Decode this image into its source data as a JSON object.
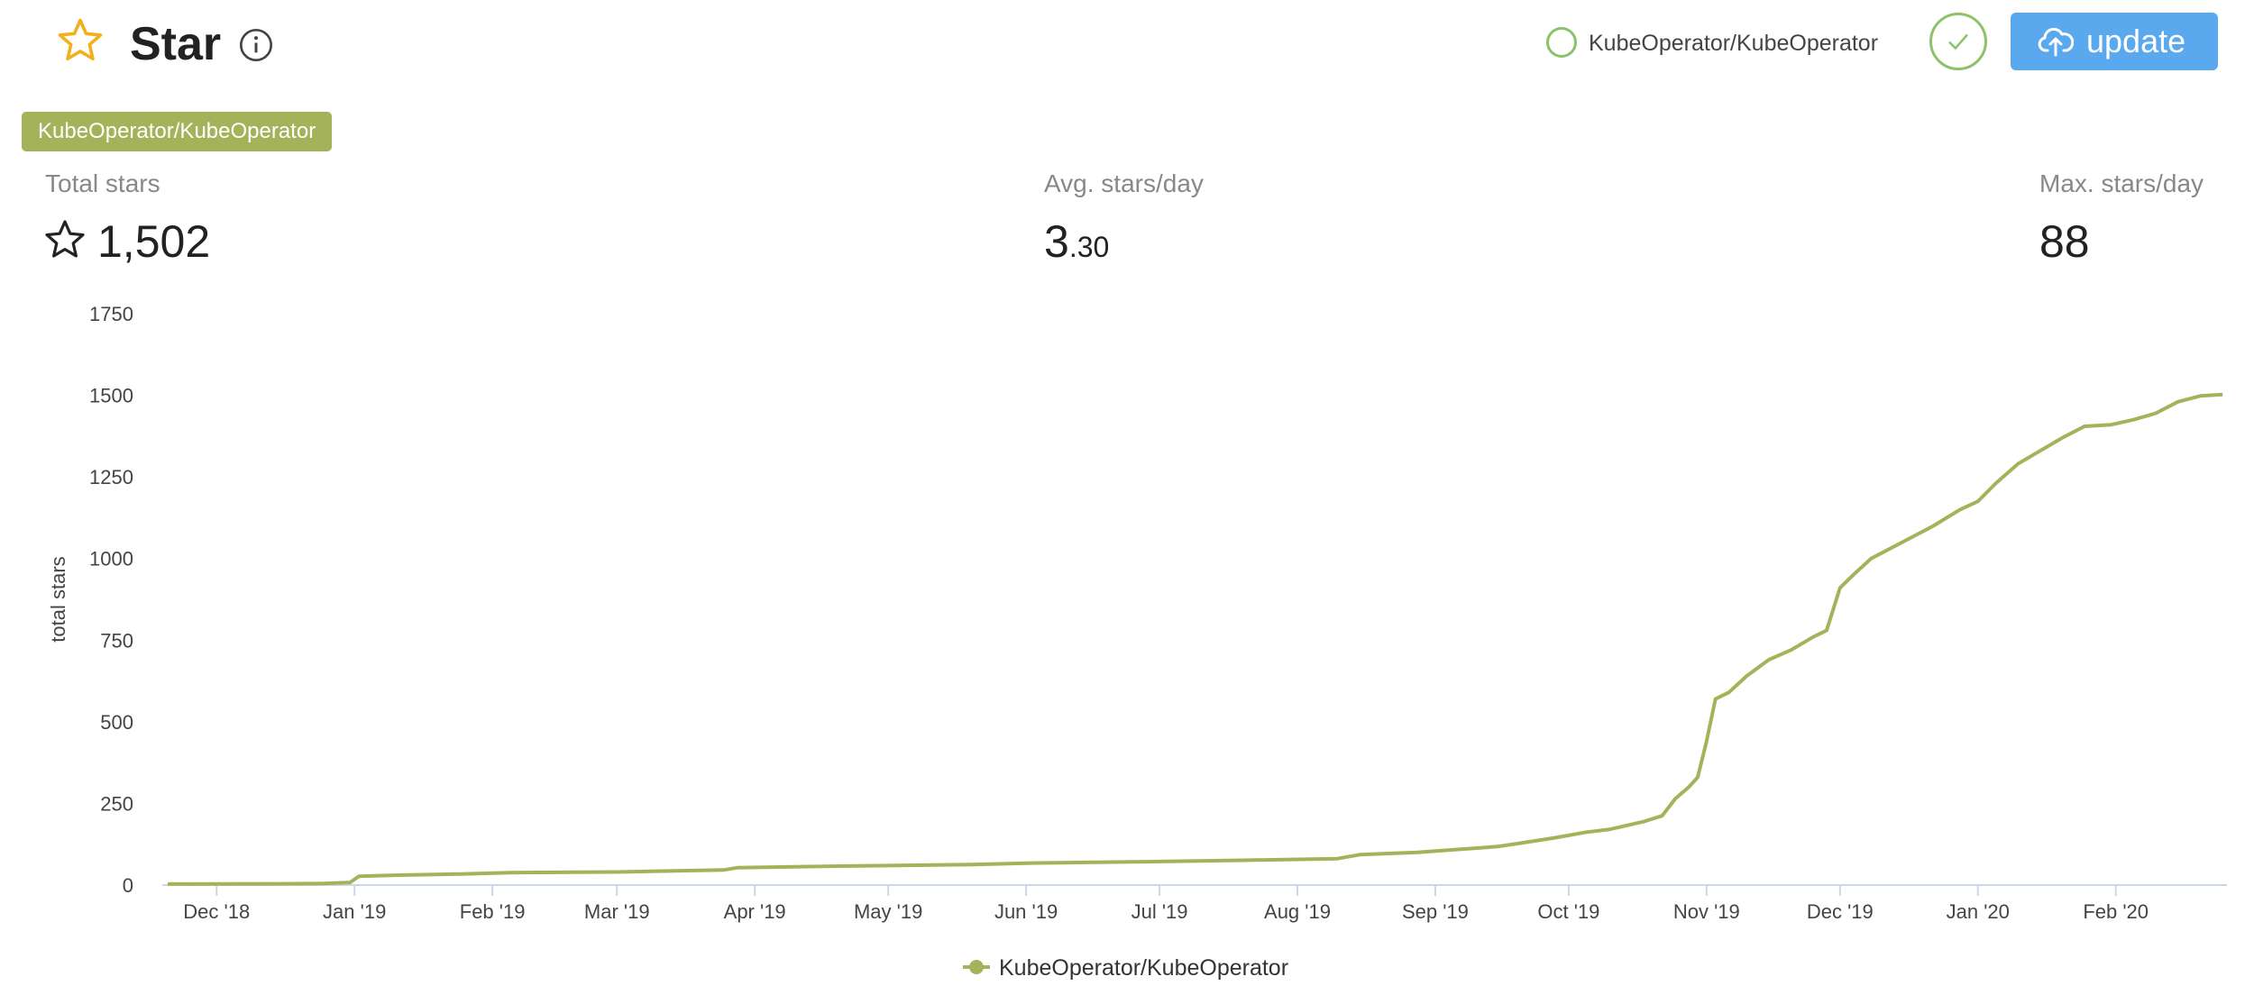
{
  "header": {
    "title": "Star",
    "repo_label": "KubeOperator/KubeOperator",
    "update_label": "update"
  },
  "tag": "KubeOperator/KubeOperator",
  "stats": {
    "total_label": "Total stars",
    "total_value": "1,502",
    "avg_label": "Avg. stars/day",
    "avg_value_int": "3",
    "avg_value_dec": ".30",
    "max_label": "Max. stars/day",
    "max_value": "88"
  },
  "colors": {
    "series": "#a4b35a",
    "accent_green": "#8bc26a",
    "button_blue": "#5aa9ef",
    "star_yellow": "#f2b01e"
  },
  "icons": {
    "title": "star-icon",
    "info": "info-icon",
    "check": "check-icon",
    "upload": "cloud-upload-icon",
    "total": "star-outline-icon"
  },
  "chart_data": {
    "type": "line",
    "ylabel": "total stars",
    "xlabel": "",
    "ylim": [
      0,
      1750
    ],
    "yticks": [
      0,
      250,
      500,
      750,
      1000,
      1250,
      1500,
      1750
    ],
    "xticks": [
      {
        "date": "2018-12-01",
        "label": "Dec '18"
      },
      {
        "date": "2019-01-01",
        "label": "Jan '19"
      },
      {
        "date": "2019-02-01",
        "label": "Feb '19"
      },
      {
        "date": "2019-03-01",
        "label": "Mar '19"
      },
      {
        "date": "2019-04-01",
        "label": "Apr '19"
      },
      {
        "date": "2019-05-01",
        "label": "May '19"
      },
      {
        "date": "2019-06-01",
        "label": "Jun '19"
      },
      {
        "date": "2019-07-01",
        "label": "Jul '19"
      },
      {
        "date": "2019-08-01",
        "label": "Aug '19"
      },
      {
        "date": "2019-09-01",
        "label": "Sep '19"
      },
      {
        "date": "2019-10-01",
        "label": "Oct '19"
      },
      {
        "date": "2019-11-01",
        "label": "Nov '19"
      },
      {
        "date": "2019-12-01",
        "label": "Dec '19"
      },
      {
        "date": "2020-01-01",
        "label": "Jan '20"
      },
      {
        "date": "2020-02-01",
        "label": "Feb '20"
      }
    ],
    "xlim": [
      "2018-11-20",
      "2020-02-26"
    ],
    "legend": "bottom-center",
    "grid": false,
    "series": [
      {
        "name": "KubeOperator/KubeOperator",
        "points": [
          [
            "2018-11-20",
            3
          ],
          [
            "2018-12-15",
            4
          ],
          [
            "2018-12-25",
            5
          ],
          [
            "2018-12-31",
            8
          ],
          [
            "2019-01-02",
            27
          ],
          [
            "2019-01-10",
            30
          ],
          [
            "2019-01-25",
            34
          ],
          [
            "2019-02-05",
            38
          ],
          [
            "2019-03-01",
            40
          ],
          [
            "2019-03-25",
            46
          ],
          [
            "2019-03-28",
            53
          ],
          [
            "2019-04-20",
            58
          ],
          [
            "2019-05-20",
            63
          ],
          [
            "2019-06-01",
            67
          ],
          [
            "2019-06-25",
            71
          ],
          [
            "2019-07-20",
            76
          ],
          [
            "2019-08-10",
            81
          ],
          [
            "2019-08-15",
            93
          ],
          [
            "2019-08-28",
            100
          ],
          [
            "2019-09-05",
            108
          ],
          [
            "2019-09-15",
            118
          ],
          [
            "2019-09-20",
            128
          ],
          [
            "2019-09-28",
            145
          ],
          [
            "2019-10-05",
            162
          ],
          [
            "2019-10-10",
            170
          ],
          [
            "2019-10-18",
            195
          ],
          [
            "2019-10-22",
            212
          ],
          [
            "2019-10-25",
            265
          ],
          [
            "2019-10-28",
            300
          ],
          [
            "2019-10-30",
            330
          ],
          [
            "2019-11-01",
            440
          ],
          [
            "2019-11-03",
            570
          ],
          [
            "2019-11-06",
            590
          ],
          [
            "2019-11-10",
            640
          ],
          [
            "2019-11-15",
            690
          ],
          [
            "2019-11-20",
            720
          ],
          [
            "2019-11-25",
            760
          ],
          [
            "2019-11-28",
            780
          ],
          [
            "2019-12-01",
            910
          ],
          [
            "2019-12-04",
            950
          ],
          [
            "2019-12-08",
            1000
          ],
          [
            "2019-12-15",
            1050
          ],
          [
            "2019-12-22",
            1100
          ],
          [
            "2019-12-28",
            1150
          ],
          [
            "2020-01-01",
            1175
          ],
          [
            "2020-01-05",
            1230
          ],
          [
            "2020-01-10",
            1290
          ],
          [
            "2020-01-15",
            1330
          ],
          [
            "2020-01-20",
            1370
          ],
          [
            "2020-01-25",
            1405
          ],
          [
            "2020-01-31",
            1410
          ],
          [
            "2020-02-05",
            1425
          ],
          [
            "2020-02-10",
            1445
          ],
          [
            "2020-02-15",
            1480
          ],
          [
            "2020-02-20",
            1498
          ],
          [
            "2020-02-25",
            1502
          ]
        ]
      }
    ]
  }
}
